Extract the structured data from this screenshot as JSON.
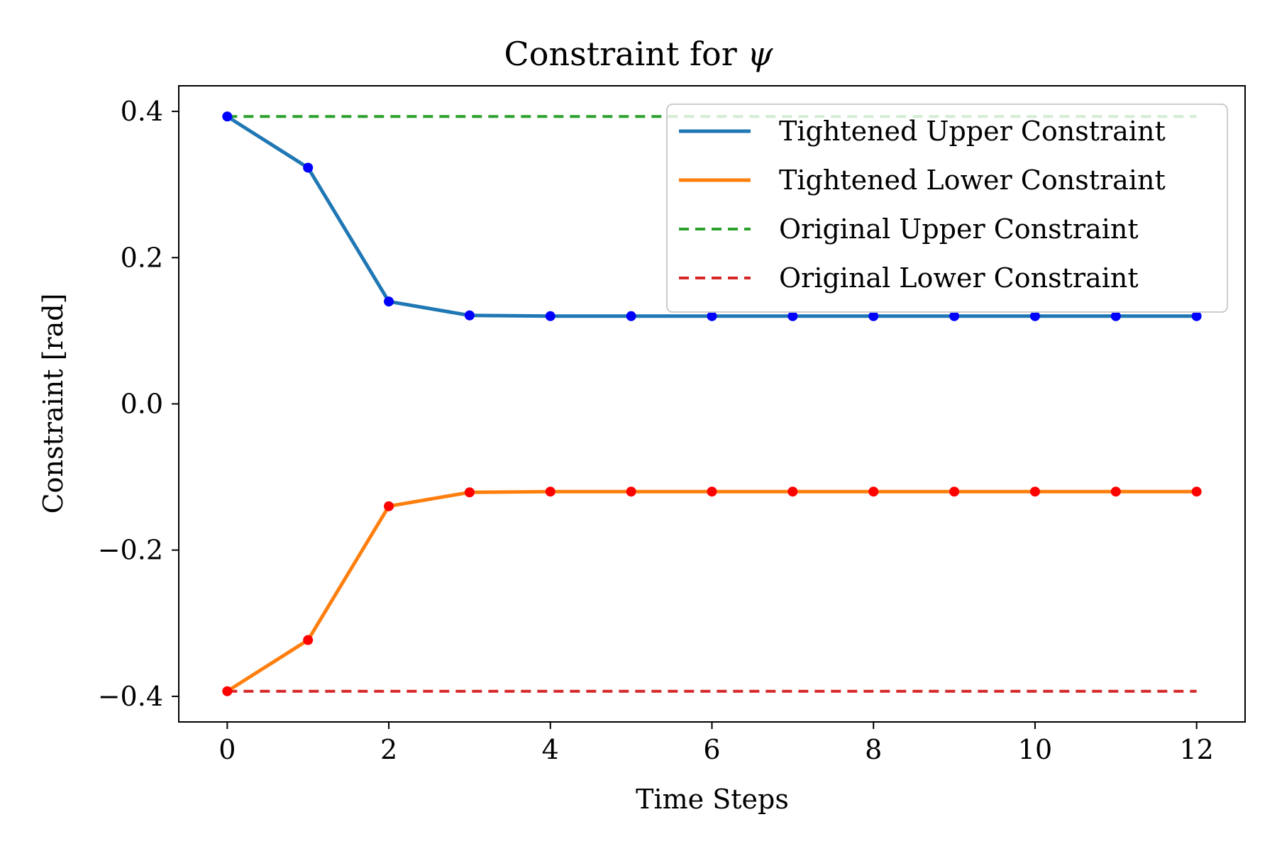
{
  "chart_data": {
    "type": "line",
    "title_text": "Constraint for ",
    "title_symbol": "ψ",
    "xlabel": "Time Steps",
    "ylabel": "Constraint [rad]",
    "xlim": [
      -0.6,
      12.6
    ],
    "ylim": [
      -0.435,
      0.435
    ],
    "x_ticks": [
      0,
      2,
      4,
      6,
      8,
      10,
      12
    ],
    "x_tick_labels": [
      "0",
      "2",
      "4",
      "6",
      "8",
      "10",
      "12"
    ],
    "y_ticks": [
      0.4,
      0.2,
      0.0,
      -0.2,
      -0.4
    ],
    "y_tick_labels": [
      "0.4",
      "0.2",
      "0.0",
      "−0.2",
      "−0.4"
    ],
    "grid": false,
    "legend_position": "top-right",
    "x": [
      0,
      1,
      2,
      3,
      4,
      5,
      6,
      7,
      8,
      9,
      10,
      11,
      12
    ],
    "series": [
      {
        "name": "Tightened Upper Constraint",
        "color": "#1f77b4",
        "style": "solid",
        "marker_color": "#0000ff",
        "values": [
          0.393,
          0.323,
          0.14,
          0.121,
          0.12,
          0.12,
          0.12,
          0.12,
          0.12,
          0.12,
          0.12,
          0.12,
          0.12
        ]
      },
      {
        "name": "Tightened Lower Constraint",
        "color": "#ff7f0e",
        "style": "solid",
        "marker_color": "#ff0000",
        "values": [
          -0.393,
          -0.323,
          -0.14,
          -0.121,
          -0.12,
          -0.12,
          -0.12,
          -0.12,
          -0.12,
          -0.12,
          -0.12,
          -0.12,
          -0.12
        ]
      },
      {
        "name": "Original Upper Constraint",
        "color": "#2ca02c",
        "style": "dashed",
        "values": [
          0.393,
          0.393,
          0.393,
          0.393,
          0.393,
          0.393,
          0.393,
          0.393,
          0.393,
          0.393,
          0.393,
          0.393,
          0.393
        ]
      },
      {
        "name": "Original Lower Constraint",
        "color": "#d62728",
        "style": "dashed",
        "values": [
          -0.393,
          -0.393,
          -0.393,
          -0.393,
          -0.393,
          -0.393,
          -0.393,
          -0.393,
          -0.393,
          -0.393,
          -0.393,
          -0.393,
          -0.393
        ]
      }
    ]
  }
}
